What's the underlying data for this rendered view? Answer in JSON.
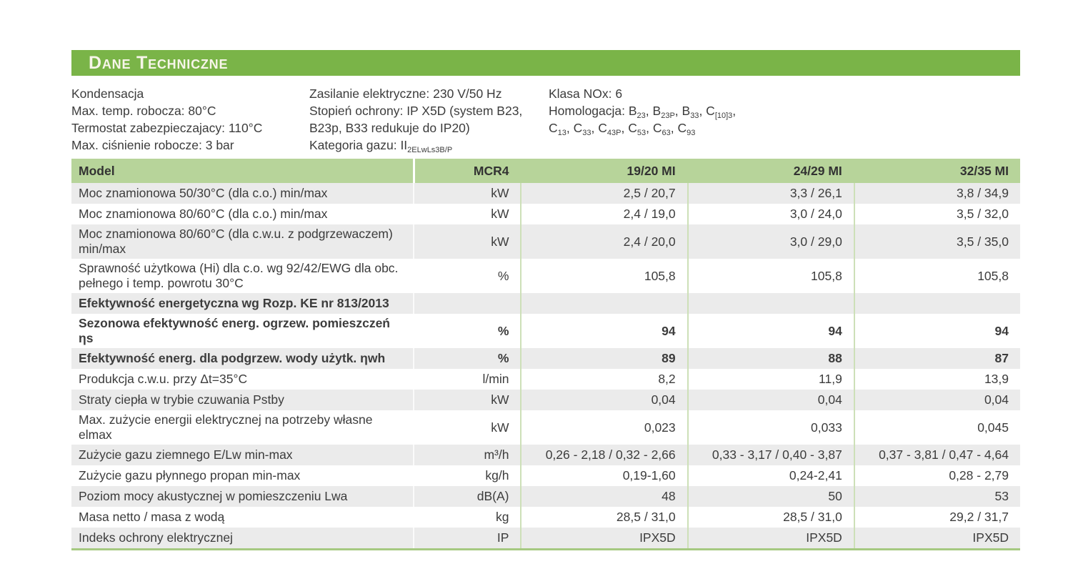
{
  "page": {
    "title": "Dane Techniczne"
  },
  "colors": {
    "title_bar_green": "#7ab448",
    "title_text": "#f7f5e9",
    "table_header_green": "#b7d49a",
    "row_gray": "#ebebeb",
    "row_white": "#ffffff",
    "column_separator_green": "#cde0b8",
    "table_bottom_border": "#a6c981",
    "body_text": "#3c3c3c"
  },
  "intro": {
    "col1_lines": [
      [
        [
          "t",
          "Kondensacja"
        ]
      ],
      [
        [
          "t",
          "Max. temp. robocza: 80°C"
        ]
      ],
      [
        [
          "t",
          "Termostat zabezpieczajacy: 110°C"
        ]
      ],
      [
        [
          "t",
          "Max. ciśnienie robocze: 3 bar"
        ]
      ]
    ],
    "col2_lines": [
      [
        [
          "t",
          "Zasilanie elektryczne: 230 V/50 Hz"
        ]
      ],
      [
        [
          "t",
          "Stopień ochrony: IP X5D (system B23,"
        ]
      ],
      [
        [
          "t",
          "B23p, B33 redukuje do IP20)"
        ]
      ],
      [
        [
          "t",
          "Kategoria gazu: II"
        ],
        [
          "s",
          "2ELwLs3B/P"
        ]
      ]
    ],
    "col3_lines": [
      [
        [
          "t",
          "Klasa NOx: 6"
        ]
      ],
      [
        [
          "t",
          "Homologacja: B"
        ],
        [
          "s",
          "23"
        ],
        [
          "t",
          ", B"
        ],
        [
          "s",
          "23P"
        ],
        [
          "t",
          ", B"
        ],
        [
          "s",
          "33"
        ],
        [
          "t",
          ", C"
        ],
        [
          "s",
          "[10]3"
        ],
        [
          "t",
          ","
        ]
      ],
      [
        [
          "t",
          "C"
        ],
        [
          "s",
          "13"
        ],
        [
          "t",
          ", C"
        ],
        [
          "s",
          "33"
        ],
        [
          "t",
          ", C"
        ],
        [
          "s",
          "43P"
        ],
        [
          "t",
          ", C"
        ],
        [
          "s",
          "53"
        ],
        [
          "t",
          ", C"
        ],
        [
          "s",
          "63"
        ],
        [
          "t",
          ", C"
        ],
        [
          "s",
          "93"
        ]
      ]
    ]
  },
  "table": {
    "columns": [
      "Model",
      "MCR4",
      "19/20 MI",
      "24/29 MI",
      "32/35 MI"
    ],
    "rows": [
      {
        "label": "Moc znamionowa 50/30°C (dla c.o.) min/max",
        "unit": "kW",
        "values": [
          "2,5 / 20,7",
          "3,3 / 26,1",
          "3,8 / 34,9"
        ],
        "bold": false
      },
      {
        "label": "Moc znamionowa 80/60°C (dla c.o.) min/max",
        "unit": "kW",
        "values": [
          "2,4 / 19,0",
          "3,0 / 24,0",
          "3,5 / 32,0"
        ],
        "bold": false
      },
      {
        "label": "Moc znamionowa 80/60°C (dla c.w.u. z podgrzewaczem) min/max",
        "unit": "kW",
        "values": [
          "2,4 / 20,0",
          "3,0 / 29,0",
          "3,5 / 35,0"
        ],
        "bold": false
      },
      {
        "label": "Sprawność użytkowa (Hi) dla c.o. wg 92/42/EWG dla obc. pełnego i temp. powrotu 30°C",
        "unit": "%",
        "values": [
          "105,8",
          "105,8",
          "105,8"
        ],
        "bold": false
      },
      {
        "label": "Efektywność energetyczna wg Rozp. KE nr 813/2013",
        "unit": "",
        "values": [
          "",
          "",
          ""
        ],
        "bold": true
      },
      {
        "label": "Sezonowa efektywność energ. ogrzew. pomieszczeń ηs",
        "unit": "%",
        "values": [
          "94",
          "94",
          "94"
        ],
        "bold": true
      },
      {
        "label": "Efektywność energ. dla podgrzew. wody użytk. ηwh",
        "unit": "%",
        "values": [
          "89",
          "88",
          "87"
        ],
        "bold": true
      },
      {
        "label": "Produkcja c.w.u. przy Δt=35°C",
        "unit": "l/min",
        "values": [
          "8,2",
          "11,9",
          "13,9"
        ],
        "bold": false
      },
      {
        "label": "Straty ciepła w trybie czuwania Pstby",
        "unit": "kW",
        "values": [
          "0,04",
          "0,04",
          "0,04"
        ],
        "bold": false
      },
      {
        "label": "Max. zużycie energii elektrycznej na potrzeby własne elmax",
        "unit": "kW",
        "values": [
          "0,023",
          "0,033",
          "0,045"
        ],
        "bold": false
      },
      {
        "label": "Zużycie gazu ziemnego E/Lw min-max",
        "unit": "m³/h",
        "values": [
          "0,26 - 2,18 / 0,32 - 2,66",
          "0,33 - 3,17 / 0,40 - 3,87",
          "0,37 - 3,81 / 0,47 - 4,64"
        ],
        "bold": false
      },
      {
        "label": "Zużycie gazu płynnego propan min-max",
        "unit": "kg/h",
        "values": [
          "0,19-1,60",
          "0,24-2,41",
          "0,28 - 2,79"
        ],
        "bold": false
      },
      {
        "label": "Poziom mocy akustycznej w pomieszczeniu Lwa",
        "unit": "dB(A)",
        "values": [
          "48",
          "50",
          "53"
        ],
        "bold": false
      },
      {
        "label": "Masa netto / masa z wodą",
        "unit": "kg",
        "values": [
          "28,5 / 31,0",
          "28,5 / 31,0",
          "29,2 / 31,7"
        ],
        "bold": false
      },
      {
        "label": "Indeks ochrony elektrycznej",
        "unit": "IP",
        "values": [
          "IPX5D",
          "IPX5D",
          "IPX5D"
        ],
        "bold": false
      }
    ]
  }
}
